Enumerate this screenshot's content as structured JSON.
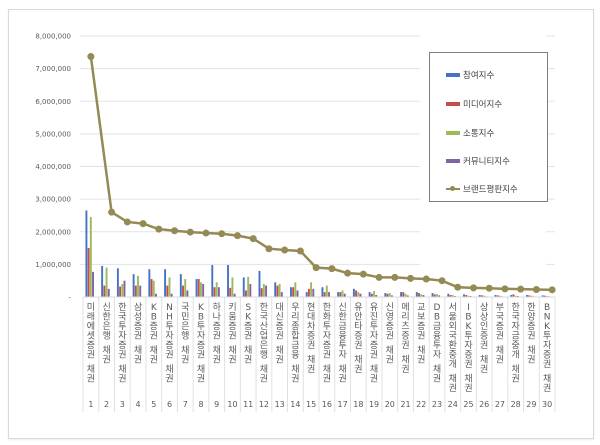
{
  "chart_data": {
    "type": "bar+line",
    "title": "",
    "xlabel": "",
    "ylabel": "",
    "ylim": [
      0,
      8000000
    ],
    "y_ticks": [
      "-",
      "1,000,000",
      "2,000,000",
      "3,000,000",
      "4,000,000",
      "5,000,000",
      "6,000,000",
      "7,000,000",
      "8,000,000"
    ],
    "grid": true,
    "legend_position": "right",
    "categories": [
      "미래에셋증권 채권",
      "신한은행 채권",
      "한국투자증권 채권",
      "삼성증권 채권",
      "KB증권 채권",
      "NH투자증권 채권",
      "국민은행 채권",
      "KB투자증권 채권",
      "하나증권 채권",
      "키움증권 채권",
      "SK증권 채권",
      "한국산업은행 채권",
      "대신증권 채권",
      "우리종합금융 채권",
      "현대차증권 채권",
      "한화투자증권 채권",
      "신한금융투자 채권",
      "유안타증권 채권",
      "유진투자증권 채권",
      "신영증권 채권",
      "메리츠증권 채권",
      "교보증권 채권",
      "DB금융투자 채권",
      "서울외국환중개 채권",
      "IBK투자증권 채권",
      "상상인증권 채권",
      "부국증권 채권",
      "한국자금중개 채권",
      "한양증권 채권",
      "BNK투자증권 채권"
    ],
    "ranks": [
      "1",
      "2",
      "3",
      "4",
      "5",
      "6",
      "7",
      "8",
      "9",
      "10",
      "11",
      "12",
      "13",
      "14",
      "15",
      "16",
      "17",
      "18",
      "19",
      "20",
      "21",
      "22",
      "23",
      "24",
      "25",
      "26",
      "27",
      "28",
      "29",
      "30"
    ],
    "series": [
      {
        "name": "참여지수",
        "kind": "bar",
        "color": "#4472c4",
        "values": [
          2650000,
          950000,
          880000,
          700000,
          850000,
          850000,
          700000,
          550000,
          980000,
          980000,
          600000,
          800000,
          450000,
          300000,
          150000,
          300000,
          150000,
          250000,
          150000,
          120000,
          150000,
          150000,
          120000,
          100000,
          80000,
          60000,
          60000,
          60000,
          60000,
          50000
        ]
      },
      {
        "name": "미디어지수",
        "kind": "bar",
        "color": "#c0504d",
        "values": [
          1500000,
          350000,
          320000,
          350000,
          550000,
          350000,
          350000,
          550000,
          300000,
          280000,
          200000,
          270000,
          350000,
          300000,
          250000,
          150000,
          150000,
          200000,
          100000,
          100000,
          150000,
          120000,
          80000,
          60000,
          60000,
          50000,
          50000,
          80000,
          50000,
          40000
        ]
      },
      {
        "name": "소통지수",
        "kind": "bar",
        "color": "#9bbb59",
        "values": [
          2450000,
          900000,
          400000,
          650000,
          500000,
          600000,
          550000,
          450000,
          450000,
          600000,
          620000,
          400000,
          400000,
          450000,
          450000,
          350000,
          200000,
          150000,
          180000,
          120000,
          100000,
          80000,
          90000,
          60000,
          40000,
          40000,
          40000,
          40000,
          40000,
          30000
        ]
      },
      {
        "name": "커뮤니티지수",
        "kind": "bar",
        "color": "#8064a2",
        "values": [
          770000,
          250000,
          500000,
          350000,
          100000,
          100000,
          200000,
          400000,
          300000,
          100000,
          400000,
          350000,
          150000,
          200000,
          250000,
          150000,
          100000,
          100000,
          60000,
          50000,
          50000,
          60000,
          50000,
          30000,
          30000,
          20000,
          20000,
          30000,
          20000,
          20000
        ]
      },
      {
        "name": "브랜드평판지수",
        "kind": "line",
        "color": "#948a54",
        "values": [
          7370000,
          2600000,
          2300000,
          2250000,
          2080000,
          2030000,
          1990000,
          1960000,
          1940000,
          1880000,
          1790000,
          1480000,
          1440000,
          1410000,
          900000,
          870000,
          730000,
          700000,
          600000,
          600000,
          570000,
          550000,
          500000,
          300000,
          280000,
          270000,
          250000,
          240000,
          230000,
          220000
        ]
      }
    ]
  },
  "legend": {
    "items": [
      {
        "label": "참여지수",
        "color": "#4472c4",
        "kind": "bar"
      },
      {
        "label": "미디어지수",
        "color": "#c0504d",
        "kind": "bar"
      },
      {
        "label": "소통지수",
        "color": "#9bbb59",
        "kind": "bar"
      },
      {
        "label": "커뮤니티지수",
        "color": "#8064a2",
        "kind": "bar"
      },
      {
        "label": "브랜드평판지수",
        "color": "#948a54",
        "kind": "line"
      }
    ]
  }
}
